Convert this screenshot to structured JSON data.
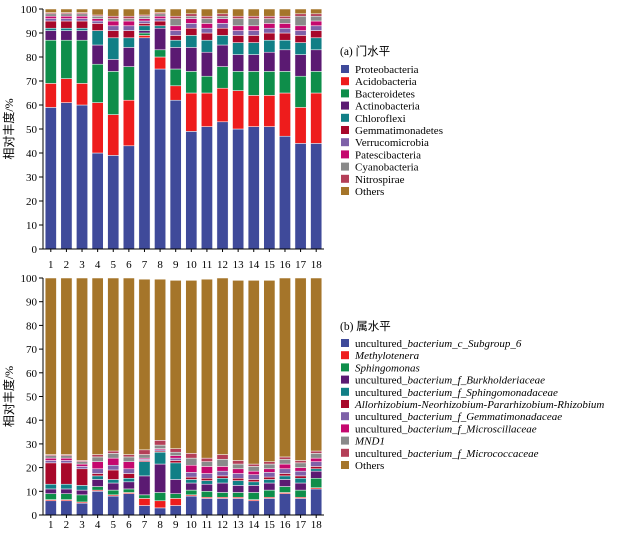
{
  "chart_data": [
    {
      "type": "bar",
      "stacked": true,
      "title": "(a) 门水平",
      "ylabel": "相对丰度/%",
      "xlabel": "",
      "ylim": [
        0,
        100
      ],
      "yticks": [
        0,
        10,
        20,
        30,
        40,
        50,
        60,
        70,
        80,
        90,
        100
      ],
      "categories": [
        "1",
        "2",
        "3",
        "4",
        "5",
        "6",
        "7",
        "8",
        "9",
        "10",
        "11",
        "12",
        "13",
        "14",
        "15",
        "16",
        "17",
        "18"
      ],
      "legend_position": "right",
      "series": [
        {
          "name": "Proteobacteria",
          "color": "#3f4a9a",
          "values": [
            59,
            61,
            60,
            40,
            39,
            43,
            88,
            75,
            62,
            49,
            51,
            53,
            50,
            51,
            51,
            47,
            44,
            44
          ]
        },
        {
          "name": "Acidobacteria",
          "color": "#ee1c1c",
          "values": [
            10,
            10,
            9,
            21,
            17,
            19,
            1,
            5,
            6,
            16,
            14,
            14,
            16,
            13,
            13,
            18,
            15,
            21
          ]
        },
        {
          "name": "Bacteroidetes",
          "color": "#0e8e4a",
          "values": [
            18,
            16,
            18,
            16,
            18,
            14,
            1,
            3,
            7,
            9,
            7,
            9,
            8,
            10,
            10,
            9,
            13,
            9
          ]
        },
        {
          "name": "Actinobacteria",
          "color": "#5b1a72",
          "values": [
            4,
            4,
            4,
            8,
            5,
            8,
            1,
            9,
            9,
            10,
            10,
            9,
            7,
            7,
            8,
            9,
            9,
            9
          ]
        },
        {
          "name": "Chloroflexi",
          "color": "#117f86",
          "values": [
            1,
            1,
            1,
            6,
            9,
            4,
            2,
            1,
            3,
            5,
            5,
            4,
            5,
            5,
            5,
            4,
            5,
            5
          ]
        },
        {
          "name": "Gemmatimonadetes",
          "color": "#a8082a",
          "values": [
            3,
            3,
            3,
            3,
            3,
            3,
            1,
            2,
            2,
            3,
            3,
            3,
            3,
            3,
            3,
            3,
            3,
            3
          ]
        },
        {
          "name": "Verrucomicrobia",
          "color": "#7e61a8",
          "values": [
            1,
            1,
            1,
            1,
            2,
            2,
            1,
            1,
            2,
            2,
            2,
            2,
            2,
            2,
            2,
            2,
            2,
            2
          ]
        },
        {
          "name": "Patescibacteria",
          "color": "#c5086e",
          "values": [
            1,
            1,
            1,
            1,
            2,
            2,
            1,
            1,
            2,
            2,
            2,
            2,
            2,
            2,
            2,
            2,
            2,
            2
          ]
        },
        {
          "name": "Cyanobacteria",
          "color": "#8a8a8a",
          "values": [
            1,
            1,
            1,
            1,
            1,
            1,
            1,
            1,
            3,
            1,
            2,
            1,
            3,
            3,
            2,
            2,
            4,
            2
          ]
        },
        {
          "name": "Nitrospirae",
          "color": "#b43f58",
          "values": [
            0.5,
            0.5,
            0.5,
            0.5,
            1,
            1,
            0.5,
            0.5,
            1,
            1,
            1,
            1,
            1,
            1,
            1,
            1,
            1,
            1
          ]
        },
        {
          "name": "Others",
          "color": "#a5752a",
          "values": [
            1.5,
            1.5,
            1.5,
            2.5,
            3,
            3,
            2.5,
            1.5,
            3,
            2,
            3,
            2,
            3,
            3,
            3,
            3,
            2,
            2
          ]
        }
      ]
    },
    {
      "type": "bar",
      "stacked": true,
      "title": "(b) 属水平",
      "ylabel": "相对丰度/%",
      "xlabel": "",
      "ylim": [
        0,
        100
      ],
      "yticks": [
        0,
        10,
        20,
        30,
        40,
        50,
        60,
        70,
        80,
        90,
        100
      ],
      "categories": [
        "1",
        "2",
        "3",
        "4",
        "5",
        "6",
        "7",
        "8",
        "9",
        "10",
        "11",
        "12",
        "13",
        "14",
        "15",
        "16",
        "17",
        "18"
      ],
      "legend_position": "right",
      "series": [
        {
          "name": "uncultured_bacterium_c_Subgroup_6",
          "prefix": "uncultured_",
          "italic": "bacterium_c_Subgroup_6",
          "color": "#3f4a9a",
          "values": [
            6,
            6,
            5,
            10,
            8,
            9,
            4,
            3,
            4,
            8,
            7,
            7,
            7,
            6,
            7,
            9,
            7,
            11
          ]
        },
        {
          "name": "Methylotenera",
          "prefix": "",
          "italic": "Methylotenera",
          "color": "#ee1c1c",
          "values": [
            0.5,
            0.5,
            0.5,
            0.5,
            0.5,
            0.5,
            3,
            3,
            3,
            0.5,
            0.5,
            0.5,
            0.5,
            0.5,
            0.5,
            0.5,
            0.5,
            0.5
          ]
        },
        {
          "name": "Sphingomonas",
          "prefix": "",
          "italic": "Sphingomonas",
          "color": "#0e8e4a",
          "values": [
            2.5,
            2.5,
            3,
            1.5,
            2,
            1.5,
            1.5,
            3.5,
            2,
            2,
            2.5,
            2,
            2,
            3,
            3,
            2.5,
            3,
            4
          ]
        },
        {
          "name": "uncultured_bacterium_f_Burkholderiaceae",
          "prefix": "uncultured_",
          "italic": "bacterium_f_Burkholderiaceae",
          "color": "#5b1a72",
          "values": [
            2,
            2,
            2,
            3,
            3,
            3,
            8,
            12,
            6,
            3,
            3,
            4,
            3,
            3,
            3,
            3,
            3,
            3
          ]
        },
        {
          "name": "uncultured_bacterium_f_Sphingomonadaceae",
          "prefix": "uncultured_",
          "italic": "bacterium_f_Sphingomonadaceae",
          "color": "#117f86",
          "values": [
            2,
            2,
            2,
            1.5,
            1.5,
            1.5,
            6,
            5,
            7,
            1.5,
            1.5,
            2,
            2,
            1.5,
            1.5,
            1.5,
            2,
            1
          ]
        },
        {
          "name": "Allorhizobium-Neorhizobium-Pararhizobium-Rhizobium",
          "prefix": "",
          "italic": "Allorhizobium-Neorhizobium-Pararhizobium-Rhizobium",
          "color": "#a8082a",
          "values": [
            9,
            9,
            7,
            1,
            4,
            2,
            0.5,
            0.5,
            1,
            1,
            1,
            1,
            1,
            1,
            1,
            1,
            1,
            1
          ]
        },
        {
          "name": "uncultured_bacterium_f_Gemmatimonadaceae",
          "prefix": "uncultured_",
          "italic": "bacterium_f_Gemmatimonadaceae",
          "color": "#7e61a8",
          "values": [
            1,
            1,
            1,
            2,
            2,
            2,
            0.5,
            0.5,
            1,
            2,
            2,
            2,
            2,
            2,
            2,
            2,
            2,
            2
          ]
        },
        {
          "name": "uncultured_bacterium_f_Microscillaceae",
          "prefix": "uncultured_",
          "italic": "bacterium_f_Microscillaceae",
          "color": "#c5086e",
          "values": [
            1,
            1,
            1,
            3,
            3,
            3,
            0.5,
            0.5,
            1,
            3,
            3,
            2,
            2,
            1.5,
            1.5,
            2,
            1.5,
            1.5
          ]
        },
        {
          "name": "MND1",
          "prefix": "",
          "italic": "MND1",
          "color": "#8a8a8a",
          "values": [
            1,
            1,
            1,
            2,
            2,
            2,
            1.5,
            1.5,
            1.5,
            3,
            2,
            3,
            2,
            2,
            2,
            2,
            2,
            2
          ]
        },
        {
          "name": "uncultured_bacterium_f_Micrococcaceae",
          "prefix": "uncultured_",
          "italic": "bacterium_f_Micrococcaceae",
          "color": "#b43f58",
          "values": [
            0.5,
            0.5,
            0.5,
            1,
            1,
            1,
            2,
            2,
            1.5,
            2,
            1.5,
            2,
            1.5,
            1,
            1,
            1,
            1,
            1
          ]
        },
        {
          "name": "Others",
          "prefix": "Others",
          "italic": "",
          "color": "#a5752a",
          "values": [
            74.5,
            74.5,
            77,
            74.5,
            73,
            74.5,
            72,
            68,
            71,
            73,
            75.5,
            74.5,
            76,
            77.5,
            76.5,
            75.5,
            77,
            73
          ]
        }
      ]
    }
  ]
}
